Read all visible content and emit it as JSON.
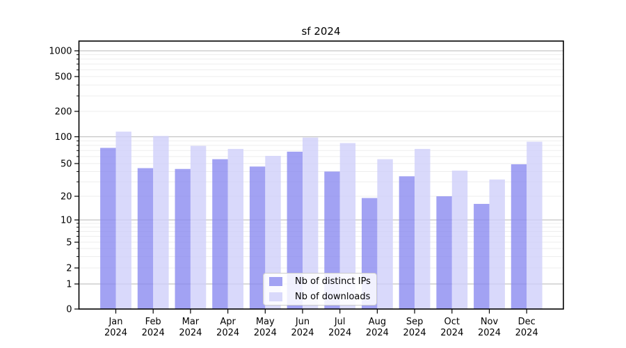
{
  "title": "sf 2024",
  "chart_data": {
    "type": "bar",
    "title": "sf 2024",
    "categories": [
      "Jan",
      "Feb",
      "Mar",
      "Apr",
      "May",
      "Jun",
      "Jul",
      "Aug",
      "Sep",
      "Oct",
      "Nov",
      "Dec"
    ],
    "year": "2024",
    "series": [
      {
        "name": "Nb of distinct IPs",
        "color_on_white": "#a2a2f3",
        "values": [
          75,
          44,
          43,
          56,
          46,
          68,
          40,
          19,
          35,
          20,
          16,
          49
        ]
      },
      {
        "name": "Nb of downloads",
        "color_on_white": "#d9d9fb",
        "values": [
          115,
          102,
          79,
          73,
          61,
          98,
          85,
          56,
          73,
          41,
          32,
          88
        ]
      }
    ],
    "yticks": [
      0,
      1,
      2,
      5,
      10,
      20,
      50,
      100,
      200,
      500,
      1000
    ],
    "yticks_minor": [
      3,
      4,
      6,
      7,
      8,
      9,
      30,
      40,
      60,
      70,
      80,
      90,
      300,
      400,
      600,
      700,
      800,
      900
    ],
    "ylim": [
      0,
      1300
    ],
    "yscale": "symlog",
    "grid": true,
    "legend_position": "lower center",
    "colors": {
      "bar_ips_rgba": "rgba(136,136,240,0.78)",
      "bar_downloads_rgba": "rgba(206,206,250,0.78)",
      "grid_major": "#c4c4c4",
      "grid_minor": "#ededed",
      "axis": "#000000"
    }
  }
}
